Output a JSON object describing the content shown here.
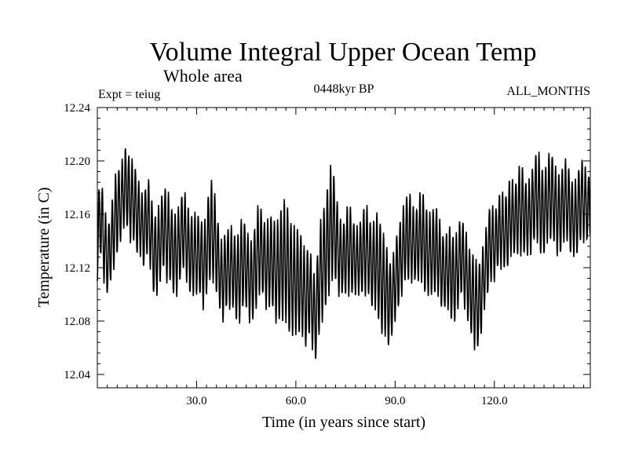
{
  "chart_data": {
    "type": "line",
    "title": "Volume Integral Upper Ocean Temp",
    "subtitle": "Whole area",
    "experiment_label": "Expt = teiug",
    "period_label": "0448kyr BP",
    "months_label": "ALL_MONTHS",
    "xlabel": "Time (in years since start)",
    "ylabel": "Temperature (in C)",
    "xlim": [
      0,
      149
    ],
    "ylim": [
      12.03,
      12.24
    ],
    "x_ticks": [
      30,
      60,
      90,
      120
    ],
    "x_tick_labels": [
      "30.0",
      "60.0",
      "90.0",
      "120.0"
    ],
    "y_ticks": [
      12.04,
      12.08,
      12.12,
      12.16,
      12.2,
      12.24
    ],
    "y_tick_labels": [
      "12.04",
      "12.08",
      "12.12",
      "12.16",
      "12.20",
      "12.24"
    ],
    "grid": false,
    "samples_per_year": 12,
    "series": [
      {
        "name": "Temperature",
        "annual_high": [
          12.17,
          12.19,
          12.17,
          12.15,
          12.16,
          12.18,
          12.2,
          12.19,
          12.21,
          12.21,
          12.2,
          12.2,
          12.19,
          12.18,
          12.17,
          12.19,
          12.18,
          12.16,
          12.16,
          12.17,
          12.18,
          12.18,
          12.17,
          12.16,
          12.16,
          12.17,
          12.18,
          12.17,
          12.16,
          12.16,
          12.16,
          12.16,
          12.15,
          12.16,
          12.19,
          12.18,
          12.17,
          12.14,
          12.14,
          12.15,
          12.15,
          12.15,
          12.14,
          12.15,
          12.16,
          12.15,
          12.14,
          12.14,
          12.16,
          12.17,
          12.16,
          12.15,
          12.16,
          12.16,
          12.15,
          12.16,
          12.17,
          12.17,
          12.16,
          12.15,
          12.15,
          12.15,
          12.14,
          12.13,
          12.14,
          12.12,
          12.11,
          12.15,
          12.16,
          12.17,
          12.19,
          12.2,
          12.18,
          12.16,
          12.15,
          12.16,
          12.17,
          12.16,
          12.15,
          12.15,
          12.16,
          12.17,
          12.16,
          12.15,
          12.16,
          12.16,
          12.15,
          12.14,
          12.13,
          12.12,
          12.14,
          12.15,
          12.16,
          12.17,
          12.18,
          12.17,
          12.16,
          12.17,
          12.18,
          12.17,
          12.16,
          12.16,
          12.17,
          12.16,
          12.15,
          12.14,
          12.15,
          12.15,
          12.14,
          12.15,
          12.16,
          12.15,
          12.14,
          12.13,
          12.13,
          12.12,
          12.13,
          12.14,
          12.16,
          12.17,
          12.16,
          12.17,
          12.18,
          12.17,
          12.18,
          12.19,
          12.18,
          12.19,
          12.2,
          12.19,
          12.18,
          12.19,
          12.2,
          12.21,
          12.2,
          12.19,
          12.2,
          12.21,
          12.2,
          12.19,
          12.19,
          12.2,
          12.2,
          12.19,
          12.18,
          12.19,
          12.2,
          12.2,
          12.19
        ],
        "annual_low": [
          12.11,
          12.13,
          12.11,
          12.1,
          12.11,
          12.12,
          12.13,
          12.14,
          12.15,
          12.15,
          12.14,
          12.14,
          12.13,
          12.13,
          12.12,
          12.13,
          12.12,
          12.1,
          12.1,
          12.11,
          12.12,
          12.11,
          12.11,
          12.1,
          12.1,
          12.11,
          12.12,
          12.11,
          12.1,
          12.1,
          12.1,
          12.1,
          12.09,
          12.1,
          12.11,
          12.11,
          12.1,
          12.09,
          12.08,
          12.09,
          12.09,
          12.09,
          12.08,
          12.08,
          12.09,
          12.09,
          12.08,
          12.08,
          12.09,
          12.1,
          12.1,
          12.09,
          12.09,
          12.09,
          12.08,
          12.08,
          12.08,
          12.08,
          12.07,
          12.07,
          12.07,
          12.07,
          12.07,
          12.06,
          12.07,
          12.06,
          12.05,
          12.07,
          12.08,
          12.09,
          12.1,
          12.11,
          12.11,
          12.1,
          12.1,
          12.1,
          12.1,
          12.1,
          12.1,
          12.1,
          12.1,
          12.1,
          12.1,
          12.09,
          12.09,
          12.08,
          12.07,
          12.07,
          12.06,
          12.07,
          12.08,
          12.09,
          12.1,
          12.11,
          12.11,
          12.11,
          12.11,
          12.11,
          12.11,
          12.1,
          12.1,
          12.1,
          12.1,
          12.1,
          12.09,
          12.09,
          12.09,
          12.08,
          12.08,
          12.09,
          12.1,
          12.09,
          12.08,
          12.07,
          12.06,
          12.06,
          12.07,
          12.09,
          12.1,
          12.11,
          12.11,
          12.12,
          12.12,
          12.12,
          12.12,
          12.13,
          12.13,
          12.13,
          12.13,
          12.13,
          12.13,
          12.13,
          12.14,
          12.14,
          12.13,
          12.13,
          12.14,
          12.14,
          12.14,
          12.13,
          12.13,
          12.14,
          12.14,
          12.13,
          12.13,
          12.13,
          12.14,
          12.14,
          12.14
        ]
      }
    ]
  }
}
